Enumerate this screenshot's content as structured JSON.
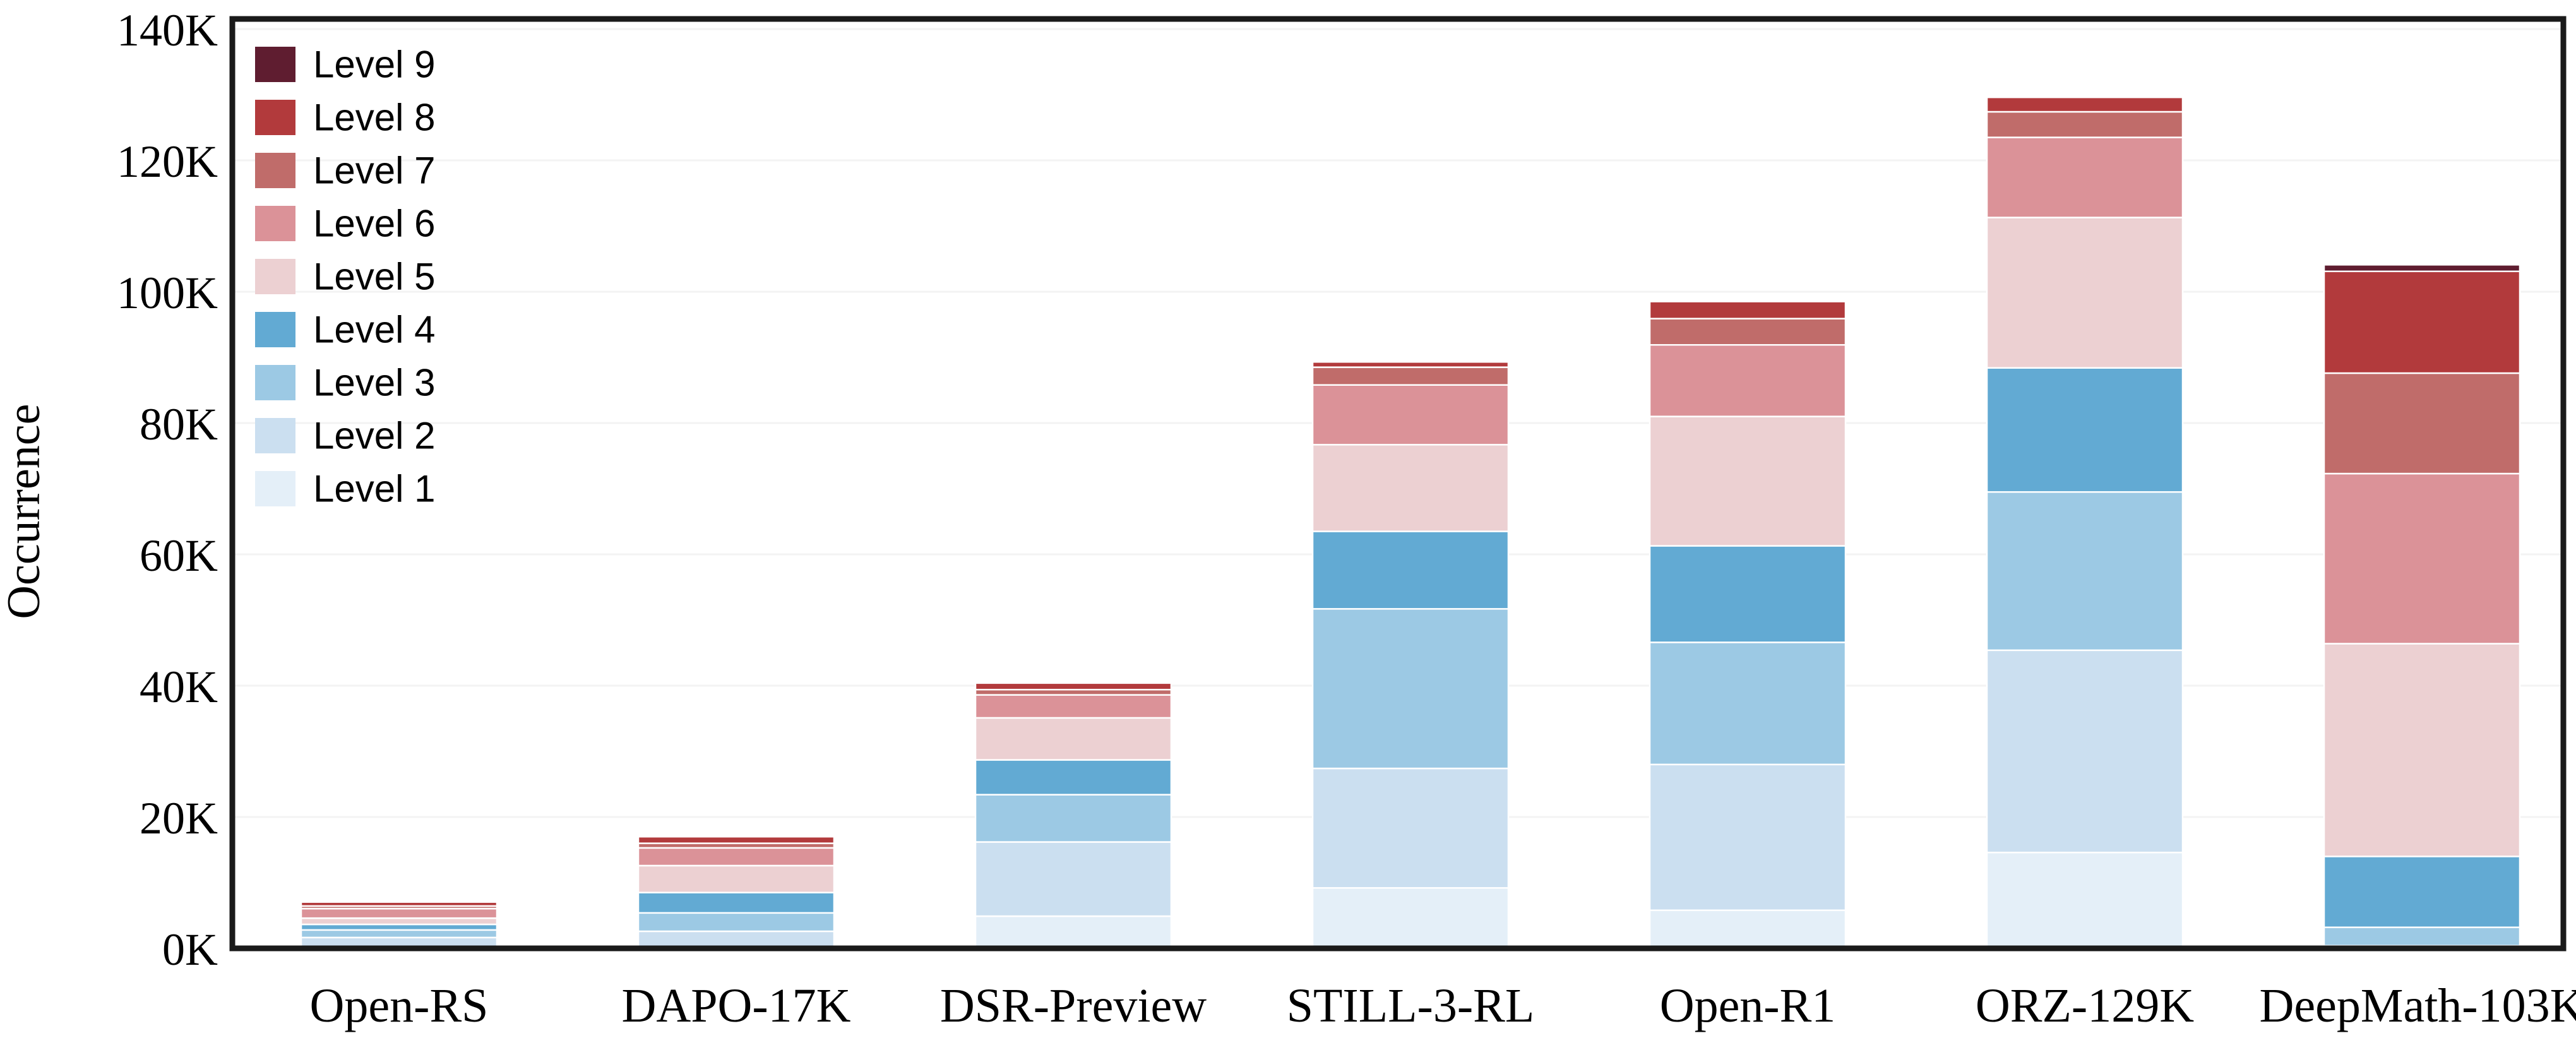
{
  "chart_data": {
    "type": "bar",
    "subtype": "stacked-vertical",
    "title": "",
    "xlabel": "",
    "ylabel": "Occurrence",
    "unit": "K (thousands)",
    "grid": "horizontal, every 20K, very light gray",
    "legend_position": "upper-left inside plot, ordered Level 9 (top) to Level 1 (bottom)",
    "categories": [
      "Open-RS",
      "DAPO-17K",
      "DSR-Preview",
      "STILL-3-RL",
      "Open-R1",
      "ORZ-129K",
      "DeepMath-103K"
    ],
    "series": [
      {
        "name": "Level 1",
        "color": "#e4eff8",
        "values": [
          0.3,
          0.2,
          4.9,
          9.2,
          5.8,
          14.6,
          0.1
        ]
      },
      {
        "name": "Level 2",
        "color": "#cbdff0",
        "values": [
          1.35,
          2.4,
          11.3,
          18.2,
          22.2,
          30.8,
          0.3
        ]
      },
      {
        "name": "Level 3",
        "color": "#9cc9e4",
        "values": [
          1.15,
          2.8,
          7.2,
          24.3,
          18.6,
          24.1,
          2.8
        ]
      },
      {
        "name": "Level 4",
        "color": "#62aad3",
        "values": [
          0.85,
          3.1,
          5.3,
          11.8,
          14.7,
          18.9,
          10.8
        ]
      },
      {
        "name": "Level 5",
        "color": "#ecd0d2",
        "values": [
          0.95,
          4.1,
          6.4,
          13.2,
          19.7,
          22.9,
          32.4
        ]
      },
      {
        "name": "Level 6",
        "color": "#db9298",
        "values": [
          1.45,
          2.7,
          3.5,
          9.1,
          10.9,
          12.2,
          25.9
        ]
      },
      {
        "name": "Level 7",
        "color": "#c06c6a",
        "values": [
          0.4,
          0.7,
          0.8,
          2.7,
          4.0,
          3.9,
          15.3
        ]
      },
      {
        "name": "Level 8",
        "color": "#b23a3c",
        "values": [
          0.6,
          1.0,
          1.0,
          0.8,
          2.6,
          2.2,
          15.5
        ]
      },
      {
        "name": "Level 9",
        "color": "#5f1d30",
        "values": [
          0,
          0,
          0,
          0,
          0,
          0,
          1.0
        ]
      }
    ],
    "approx_totals_k": [
      7.0,
      17.0,
      40.4,
      89.3,
      98.5,
      129.6,
      104.1
    ],
    "y_axis": {
      "label": "Occurrence",
      "ticks": [
        "0K",
        "20K",
        "40K",
        "60K",
        "80K",
        "100K",
        "120K",
        "140K"
      ],
      "tick_values_k": [
        0,
        20,
        40,
        60,
        80,
        100,
        120,
        140
      ],
      "ylim_k": [
        0,
        140
      ]
    },
    "legend_labels_top_to_bottom": [
      "Level 9",
      "Level 8",
      "Level 7",
      "Level 6",
      "Level 5",
      "Level 4",
      "Level 3",
      "Level 2",
      "Level 1"
    ],
    "colors": {
      "plot_border": "#1a1a1a",
      "grid_line": "#f3f3f3",
      "segment_edge": "#ffffff",
      "background": "#ffffff",
      "text": "#000000"
    }
  }
}
